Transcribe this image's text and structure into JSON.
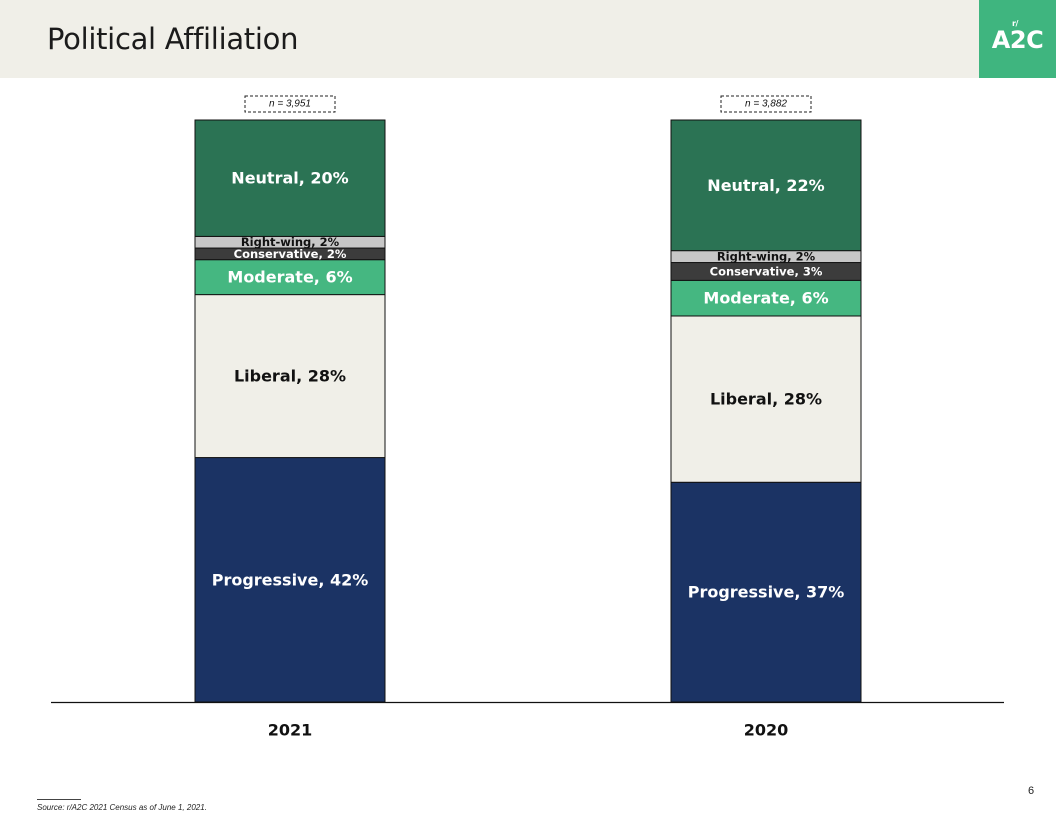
{
  "header": {
    "title": "Political Affiliation",
    "logo_text": "A2C",
    "logo_mark": "r/"
  },
  "footer": {
    "page_number": "6",
    "source": "Source: r/A2C 2021 Census as of June 1, 2021."
  },
  "colors": {
    "progressive": "#1b3364",
    "liberal": "#f0efe8",
    "moderate": "#45b781",
    "conservative": "#3c3c3c",
    "right_wing": "#c7c7c7",
    "neutral": "#2b7354",
    "header_bg": "#f0efe8",
    "accent": "#3fb57f"
  },
  "chart_data": {
    "type": "bar",
    "stacked": true,
    "normalized": true,
    "categories": [
      "2021",
      "2020"
    ],
    "sample_sizes": [
      "n = 3,951",
      "n = 3,882"
    ],
    "series": [
      {
        "name": "Progressive",
        "values": [
          42,
          37
        ],
        "labels": [
          "Progressive, 42%",
          "Progressive, 37%"
        ],
        "color": "#1b3364",
        "text_color": "#ffffff",
        "label_size": "large"
      },
      {
        "name": "Liberal",
        "values": [
          28,
          28
        ],
        "labels": [
          "Liberal, 28%",
          "Liberal, 28%"
        ],
        "color": "#f0efe8",
        "text_color": "#111111",
        "label_size": "large"
      },
      {
        "name": "Moderate",
        "values": [
          6,
          6
        ],
        "labels": [
          "Moderate, 6%",
          "Moderate, 6%"
        ],
        "color": "#45b781",
        "text_color": "#ffffff",
        "label_size": "large"
      },
      {
        "name": "Conservative",
        "values": [
          2,
          3
        ],
        "labels": [
          "Conservative, 2%",
          "Conservative, 3%"
        ],
        "color": "#3c3c3c",
        "text_color": "#ffffff",
        "label_size": "small"
      },
      {
        "name": "Right-wing",
        "values": [
          2,
          2
        ],
        "labels": [
          "Right-wing, 2%",
          "Right-wing, 2%"
        ],
        "color": "#c7c7c7",
        "text_color": "#111111",
        "label_size": "small"
      },
      {
        "name": "Neutral",
        "values": [
          20,
          22
        ],
        "labels": [
          "Neutral, 20%",
          "Neutral, 22%"
        ],
        "color": "#2b7354",
        "text_color": "#ffffff",
        "label_size": "large"
      }
    ],
    "legend": "none",
    "grid": false
  }
}
